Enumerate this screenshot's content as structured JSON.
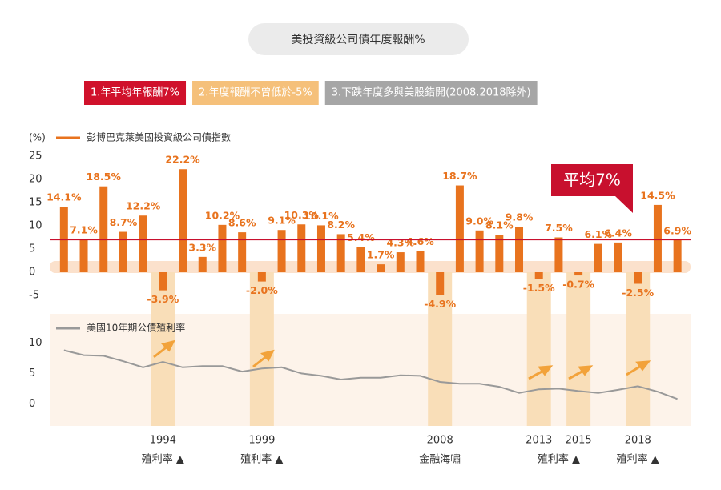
{
  "chart_data": [
    {
      "type": "bar",
      "title": "美投資級公司債年度報酬%",
      "highlights": [
        {
          "text": "1.年平均年報酬7%",
          "color": "#d0112b"
        },
        {
          "text": "2.年度報酬不曾低於-5%",
          "color": "#f5c07a"
        },
        {
          "text": "3.下跌年度多與美股錯開(2008.2018除外)",
          "color": "#a6a6a6"
        }
      ],
      "ylabel": "(%)",
      "categories": [
        null,
        null,
        null,
        null,
        null,
        "1994",
        null,
        null,
        null,
        null,
        "1999",
        null,
        null,
        null,
        null,
        null,
        null,
        null,
        null,
        "2008",
        null,
        null,
        null,
        null,
        "2013",
        null,
        "2015",
        null,
        null,
        "2018",
        null,
        null
      ],
      "category_notes": [
        null,
        null,
        null,
        null,
        null,
        "殖利率 ▲",
        null,
        null,
        null,
        null,
        "殖利率 ▲",
        null,
        null,
        null,
        null,
        null,
        null,
        null,
        null,
        "金融海嘯",
        null,
        null,
        null,
        null,
        null,
        "殖利率 ▲",
        null,
        null,
        null,
        "殖利率 ▲",
        null,
        null
      ],
      "series": [
        {
          "name": "彭博巴克萊美國投資級公司債指數",
          "color": "#e8731e",
          "values": [
            14.1,
            7.1,
            18.5,
            8.7,
            12.2,
            -3.9,
            22.2,
            3.3,
            10.2,
            8.6,
            -2.0,
            9.1,
            10.3,
            10.1,
            8.2,
            5.4,
            1.7,
            4.3,
            4.6,
            -4.9,
            18.7,
            9.0,
            8.1,
            9.8,
            -1.5,
            7.5,
            -0.7,
            6.1,
            6.4,
            -2.5,
            14.5,
            6.9
          ],
          "value_labels": [
            "14.1%",
            "7.1%",
            "18.5%",
            "8.7%",
            "12.2%",
            "-3.9%",
            "22.2%",
            "3.3%",
            "10.2%",
            "8.6%",
            "-2.0%",
            "9.1%",
            "10.3%",
            "10.1%",
            "8.2%",
            "5.4%",
            "1.7%",
            "4.3%",
            "4.6%",
            "-4.9%",
            "18.7%",
            "9.0%",
            "8.1%",
            "9.8%",
            "-1.5%",
            "7.5%",
            "-0.7%",
            "6.1%",
            "6.4%",
            "-2.5%",
            "14.5%",
            "6.9%"
          ]
        }
      ],
      "average": {
        "value": 7,
        "label": "平均7%",
        "color": "#c8102e"
      },
      "ylim": [
        -5,
        25
      ],
      "yticks": [
        25,
        20,
        15,
        10,
        5,
        0,
        -5
      ]
    },
    {
      "type": "line",
      "x": [
        1989,
        1990,
        1991,
        1992,
        1993,
        1994,
        1995,
        1996,
        1997,
        1998,
        1999,
        2000,
        2001,
        2002,
        2003,
        2004,
        2005,
        2006,
        2007,
        2008,
        2009,
        2010,
        2011,
        2012,
        2013,
        2014,
        2015,
        2016,
        2017,
        2018,
        2019,
        2020
      ],
      "series": [
        {
          "name": "美國10年期公債殖利率",
          "color": "#999999",
          "values": [
            8.8,
            8.0,
            7.9,
            7.0,
            6.0,
            6.9,
            6.0,
            6.2,
            6.2,
            5.3,
            5.8,
            6.0,
            5.0,
            4.6,
            4.0,
            4.3,
            4.3,
            4.7,
            4.6,
            3.6,
            3.3,
            3.3,
            2.8,
            1.8,
            2.4,
            2.5,
            2.1,
            1.8,
            2.3,
            2.9,
            2.0,
            0.8
          ]
        }
      ],
      "xlim": [
        1988.4,
        2020.5
      ],
      "ylim": [
        -3.5,
        14
      ],
      "yticks": [
        10,
        5,
        0
      ]
    }
  ]
}
